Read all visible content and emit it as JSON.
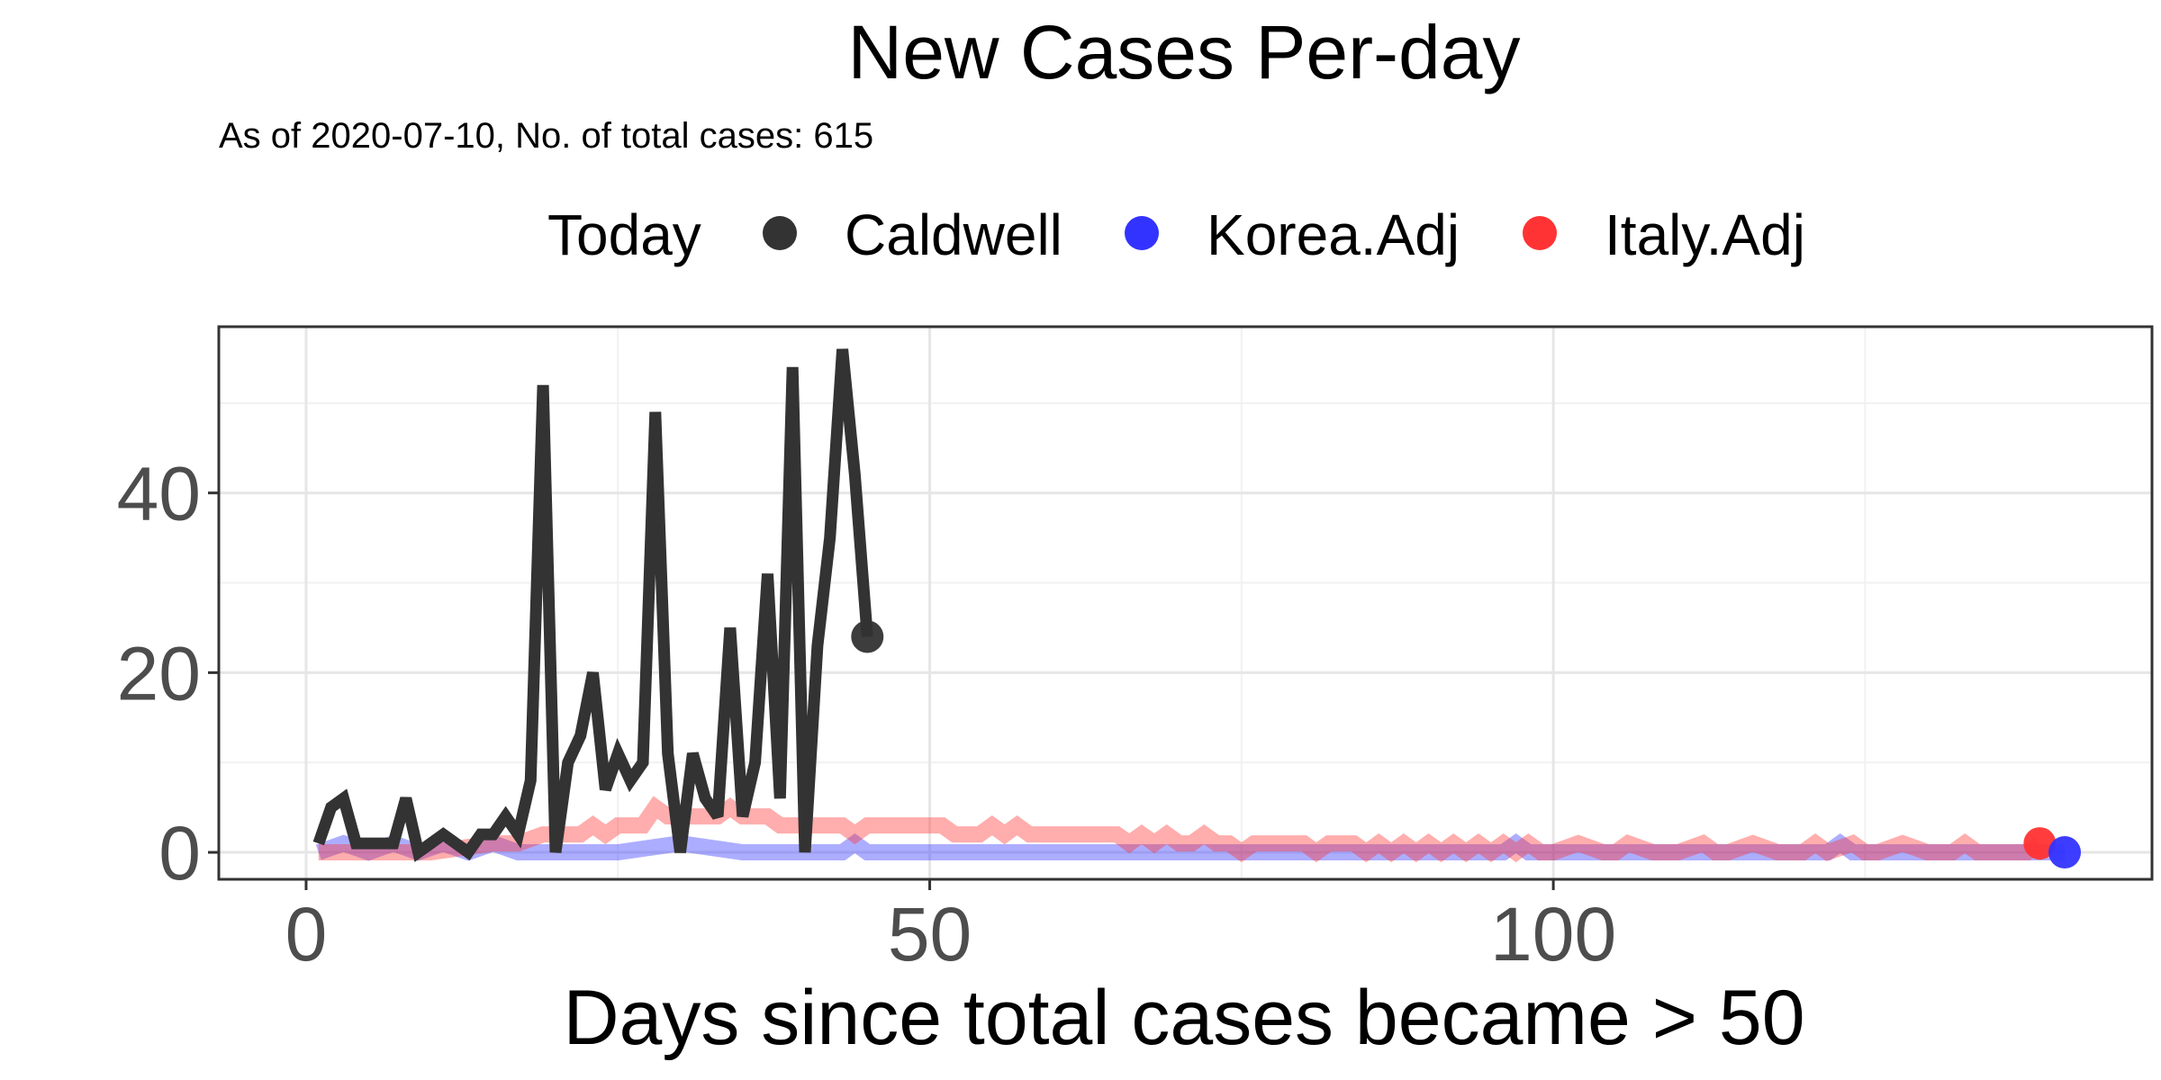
{
  "chart_data": {
    "type": "line",
    "title": "New Cases Per-day",
    "subtitle": "As of 2020-07-10, No. of total cases: 615",
    "xlabel": "Days since total cases became > 50",
    "ylabel": "",
    "xlim": [
      -7,
      148
    ],
    "ylim": [
      -3,
      58.5
    ],
    "xticks": [
      0,
      50,
      100
    ],
    "yticks": [
      0,
      20,
      40
    ],
    "grid": true,
    "legend": {
      "position": "top",
      "title": "Today",
      "entries": [
        {
          "name": "Caldwell",
          "color": "#333333"
        },
        {
          "name": "Korea.Adj",
          "color": "#3333FF"
        },
        {
          "name": "Italy.Adj",
          "color": "#FF3333"
        }
      ]
    },
    "series": [
      {
        "name": "Caldwell",
        "color": "#333333",
        "x": [
          1,
          2,
          3,
          4,
          5,
          6,
          7,
          8,
          9,
          10,
          11,
          12,
          13,
          14,
          15,
          16,
          17,
          18,
          19,
          20,
          21,
          22,
          23,
          24,
          25,
          26,
          27,
          28,
          29,
          30,
          31,
          32,
          33,
          34,
          35,
          36,
          37,
          38,
          39,
          40,
          41,
          42,
          43,
          44,
          45
        ],
        "values": [
          1,
          5,
          6,
          1,
          1,
          1,
          1,
          6,
          0,
          1,
          2,
          1,
          0,
          2,
          2,
          4,
          2,
          8,
          52,
          0,
          10,
          13,
          20,
          7,
          11,
          8,
          10,
          49,
          11,
          0,
          11,
          6,
          4,
          25,
          4,
          10,
          31,
          6,
          54,
          0,
          23,
          35,
          56,
          42,
          24
        ]
      },
      {
        "name": "Korea.Adj",
        "color": "#3333FF",
        "x": [
          1,
          3,
          5,
          7,
          9,
          11,
          13,
          15,
          17,
          20,
          25,
          30,
          35,
          40,
          43,
          44,
          45,
          50,
          60,
          70,
          80,
          90,
          96,
          97,
          98,
          100,
          110,
          120,
          122,
          123,
          124,
          130,
          140,
          141
        ],
        "values": [
          0,
          1,
          0,
          1,
          0,
          1,
          0,
          1,
          0,
          0,
          0,
          1,
          0,
          0,
          0,
          1,
          0,
          0,
          0,
          0,
          0,
          0,
          0,
          1,
          0,
          0,
          0,
          0,
          0,
          1,
          0,
          0,
          0,
          0
        ]
      },
      {
        "name": "Italy.Adj",
        "color": "#FF3333",
        "x": [
          1,
          5,
          10,
          15,
          17,
          19,
          21,
          22,
          23,
          24,
          25,
          26,
          27,
          28,
          29,
          30,
          31,
          32,
          33,
          34,
          35,
          36,
          37,
          38,
          39,
          40,
          41,
          42,
          43,
          44,
          45,
          46,
          47,
          48,
          49,
          50,
          51,
          52,
          53,
          54,
          55,
          56,
          57,
          58,
          59,
          60,
          61,
          62,
          63,
          64,
          65,
          66,
          67,
          68,
          69,
          70,
          71,
          72,
          73,
          74,
          75,
          76,
          77,
          78,
          79,
          80,
          81,
          82,
          83,
          84,
          85,
          86,
          87,
          88,
          89,
          90,
          91,
          92,
          93,
          94,
          95,
          96,
          97,
          98,
          99,
          100,
          102,
          104,
          105,
          106,
          108,
          110,
          112,
          113,
          114,
          116,
          118,
          120,
          121,
          122,
          124,
          125,
          126,
          128,
          130,
          132,
          133,
          134,
          136,
          138,
          139
        ],
        "values": [
          0,
          0,
          0,
          1,
          1,
          2,
          2,
          2,
          3,
          2,
          3,
          3,
          3,
          5,
          4,
          4,
          4,
          4,
          4,
          5,
          4,
          4,
          4,
          3,
          3,
          3,
          3,
          3,
          3,
          2,
          3,
          3,
          3,
          3,
          3,
          3,
          3,
          2,
          2,
          2,
          3,
          2,
          3,
          2,
          2,
          2,
          2,
          2,
          2,
          2,
          2,
          1,
          2,
          1,
          2,
          1,
          1,
          2,
          1,
          1,
          0,
          1,
          1,
          1,
          1,
          1,
          0,
          1,
          1,
          1,
          0,
          1,
          0,
          1,
          0,
          1,
          0,
          1,
          0,
          1,
          0,
          1,
          0,
          1,
          0,
          0,
          1,
          0,
          0,
          1,
          0,
          0,
          1,
          0,
          0,
          1,
          0,
          0,
          1,
          0,
          1,
          0,
          0,
          1,
          0,
          0,
          1,
          0,
          0,
          0,
          1
        ]
      }
    ],
    "endpoints": [
      {
        "name": "Caldwell",
        "x": 45,
        "y": 24,
        "color": "#333333"
      },
      {
        "name": "Italy.Adj",
        "x": 139,
        "y": 1,
        "color": "#FF3333"
      },
      {
        "name": "Korea.Adj",
        "x": 141,
        "y": 0,
        "color": "#3333FF"
      }
    ]
  }
}
